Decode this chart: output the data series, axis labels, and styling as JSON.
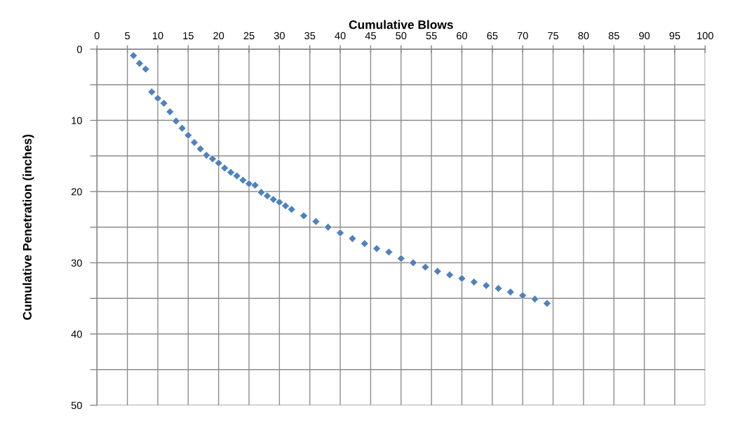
{
  "chart_data": {
    "type": "scatter",
    "xlabel": "Cumulative Blows",
    "ylabel": "Cumulative Penetration (inches)",
    "x": [
      6,
      7,
      8,
      9,
      10,
      11,
      12,
      13,
      14,
      15,
      16,
      17,
      18,
      19,
      20,
      21,
      22,
      23,
      24,
      25,
      26,
      27,
      28,
      29,
      30,
      31,
      32,
      34,
      36,
      38,
      40,
      42,
      44,
      46,
      48,
      50,
      52,
      54,
      56,
      58,
      60,
      62,
      64,
      66,
      68,
      70,
      72,
      74
    ],
    "values": [
      0.9,
      2.0,
      2.8,
      6.0,
      6.9,
      7.6,
      8.8,
      10.1,
      11.1,
      12.1,
      13.1,
      14.0,
      14.9,
      15.4,
      16.0,
      16.7,
      17.3,
      17.8,
      18.4,
      18.9,
      19.1,
      20.1,
      20.6,
      21.1,
      21.5,
      22.0,
      22.5,
      23.4,
      24.2,
      25.0,
      25.8,
      26.6,
      27.3,
      28.0,
      28.5,
      29.4,
      30.0,
      30.6,
      31.2,
      31.7,
      32.2,
      32.7,
      33.2,
      33.6,
      34.1,
      34.6,
      35.1,
      35.7
    ],
    "color": "#4f81bd",
    "marker": "diamond",
    "xlim": [
      0,
      100
    ],
    "ylim": [
      50,
      0
    ],
    "xticks": [
      0,
      5,
      10,
      15,
      20,
      25,
      30,
      35,
      40,
      45,
      50,
      55,
      60,
      65,
      70,
      75,
      80,
      85,
      90,
      95,
      100
    ],
    "yticks": [
      0,
      {
        "value": 5,
        "label": null
      },
      10,
      {
        "value": 15,
        "label": null
      },
      20,
      {
        "value": 25,
        "label": null
      },
      30,
      {
        "value": 35,
        "label": null
      },
      40,
      {
        "value": 45,
        "label": null
      },
      50
    ],
    "grid": true
  }
}
